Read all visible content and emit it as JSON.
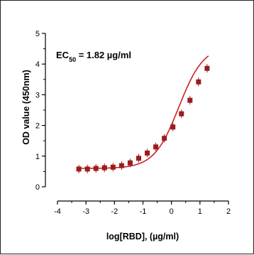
{
  "chart_data": {
    "type": "scatter",
    "xlabel": "log[RBD], (µg/ml)",
    "ylabel": "OD value (450nm)",
    "xlim": [
      -4,
      2
    ],
    "ylim": [
      0,
      5
    ],
    "xticks": [
      -4,
      -3,
      -2,
      -1,
      0,
      1,
      2
    ],
    "yticks": [
      0,
      1,
      2,
      3,
      4,
      5
    ],
    "grid": false,
    "annotation": {
      "prefix": "EC",
      "subscript": "50",
      "suffix": " = 1.82 µg/ml"
    },
    "ec50": 1.82,
    "colors": {
      "points": "#9b1c1c",
      "fit": "#cc2222",
      "axis": "#000000"
    },
    "fit": {
      "bottom": 0.6,
      "top": 4.6,
      "log_ec50": 0.26,
      "hill": 1.0
    },
    "series": [
      {
        "points": [
          {
            "x": -3.25,
            "y": 0.58
          },
          {
            "x": -2.95,
            "y": 0.58
          },
          {
            "x": -2.65,
            "y": 0.6
          },
          {
            "x": -2.35,
            "y": 0.62
          },
          {
            "x": -2.05,
            "y": 0.64
          },
          {
            "x": -1.75,
            "y": 0.69
          },
          {
            "x": -1.45,
            "y": 0.78
          },
          {
            "x": -1.15,
            "y": 0.93
          },
          {
            "x": -0.85,
            "y": 1.1
          },
          {
            "x": -0.55,
            "y": 1.3
          },
          {
            "x": -0.25,
            "y": 1.58
          },
          {
            "x": 0.05,
            "y": 1.95
          },
          {
            "x": 0.35,
            "y": 2.38
          },
          {
            "x": 0.65,
            "y": 2.82
          },
          {
            "x": 0.95,
            "y": 3.42
          },
          {
            "x": 1.25,
            "y": 3.86
          }
        ]
      }
    ]
  }
}
